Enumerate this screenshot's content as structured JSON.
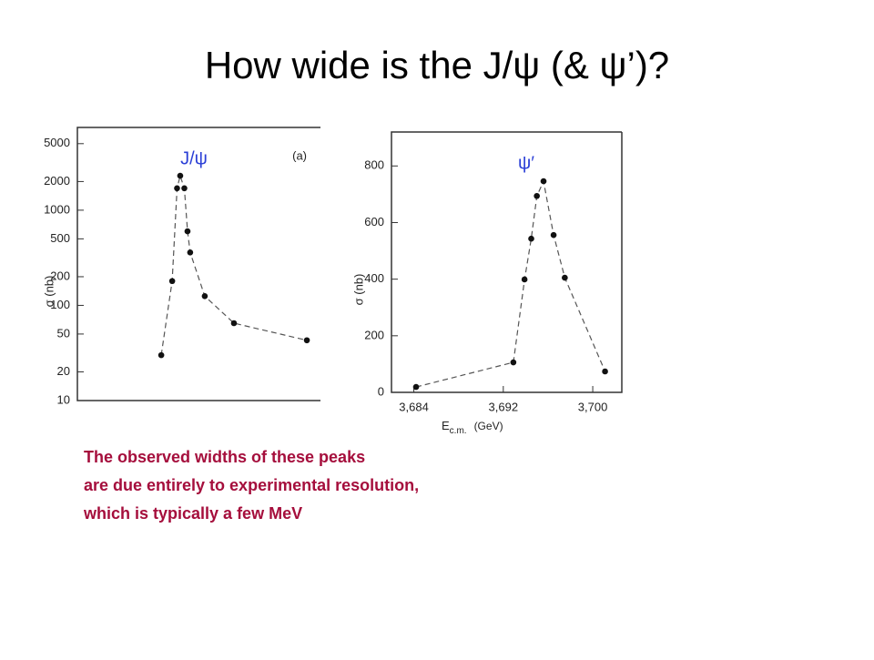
{
  "title": "How wide is the J/ψ (& ψ’)?",
  "note": [
    "The observed  widths of these peaks",
    "are due entirely to experimental resolution,",
    "which is typically a few MeV"
  ],
  "chart_data": [
    {
      "type": "scatter",
      "label": "J/ψ",
      "panel": "(a)",
      "y_label": "σ (nb)",
      "log_y": true,
      "color": "#111111",
      "line_color": "#555555",
      "x": [
        34.5,
        39,
        41,
        42.3,
        44,
        45.3,
        46.4,
        52.4,
        64.4,
        94.4
      ],
      "values": [
        30,
        180,
        1700,
        2300,
        1700,
        600,
        360,
        125,
        65,
        43
      ],
      "xlim": [
        0,
        100
      ],
      "ylim": [
        10,
        7400
      ],
      "yticks": [
        10,
        20,
        50,
        100,
        200,
        500,
        1000,
        2000,
        5000
      ]
    },
    {
      "type": "scatter",
      "label": "ψ′",
      "y_label": "σ (nb)",
      "x_label": "E",
      "x_label_sub": "c.m.",
      "x_unit": "(GeV)",
      "log_y": false,
      "color": "#111111",
      "line_color": "#555555",
      "x": [
        3.6842,
        3.6929,
        3.6939,
        3.6945,
        3.695,
        3.6956,
        3.6965,
        3.6975,
        3.7011
      ],
      "values": [
        19,
        106,
        399,
        543,
        694,
        746,
        556,
        405,
        74
      ],
      "xlim": [
        3.682,
        3.7026
      ],
      "ylim": [
        0,
        920
      ],
      "xticks": [
        {
          "value": 3.684,
          "label": "3,684"
        },
        {
          "value": 3.692,
          "label": "3,692"
        },
        {
          "value": 3.7,
          "label": "3,700"
        }
      ],
      "yticks": [
        0,
        200,
        400,
        600,
        800
      ]
    }
  ]
}
